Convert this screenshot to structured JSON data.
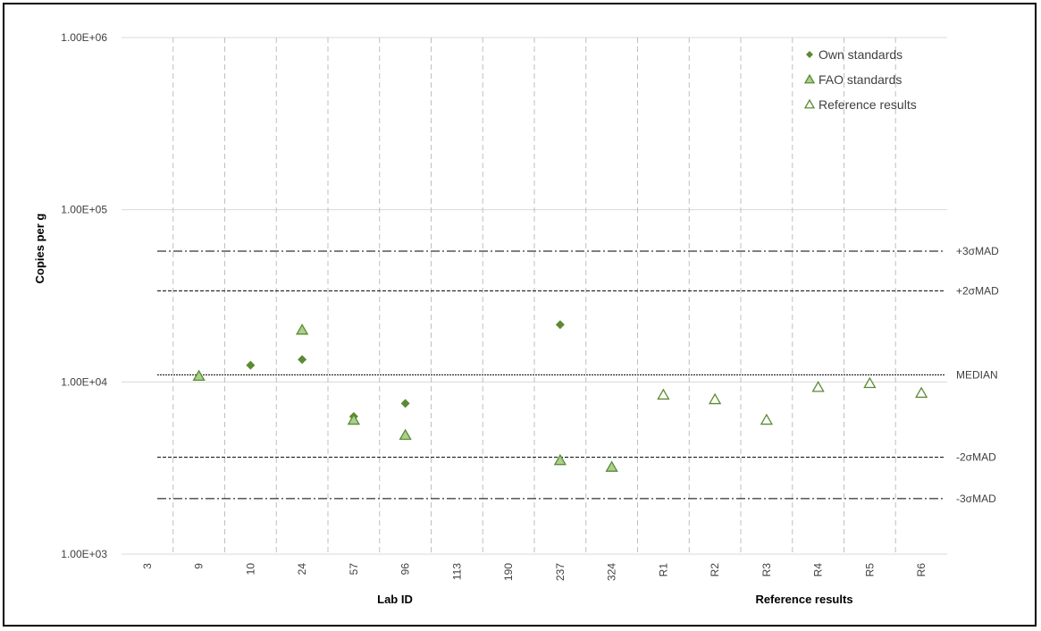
{
  "chart_data": {
    "type": "scatter",
    "ylabel": "Copies per g",
    "xlabel": "Lab ID",
    "xlabel_secondary": "Reference results",
    "y_scale": "log",
    "ylim": [
      1000,
      1000000
    ],
    "y_ticks": [
      {
        "value": 1000,
        "label": "1.00E+03"
      },
      {
        "value": 10000,
        "label": "1.00E+04"
      },
      {
        "value": 100000,
        "label": "1.00E+05"
      },
      {
        "value": 1000000,
        "label": "1.00E+06"
      }
    ],
    "categories": [
      "3",
      "9",
      "10",
      "24",
      "57",
      "96",
      "113",
      "190",
      "237",
      "324",
      "R1",
      "R2",
      "R3",
      "R4",
      "R5",
      "R6"
    ],
    "grid": {
      "vertical_dashed": true,
      "horizontal": true
    },
    "legend_position": "top-right",
    "series": [
      {
        "name": "Own standards",
        "marker": "diamond",
        "color": "#5b8a32",
        "points": [
          {
            "x": "10",
            "y": 12500
          },
          {
            "x": "24",
            "y": 13500
          },
          {
            "x": "57",
            "y": 6300
          },
          {
            "x": "96",
            "y": 7500
          },
          {
            "x": "237",
            "y": 21500
          }
        ]
      },
      {
        "name": "FAO standards",
        "marker": "triangle-filled",
        "color": "#a9d08e",
        "stroke": "#5b8a32",
        "points": [
          {
            "x": "9",
            "y": 10800
          },
          {
            "x": "24",
            "y": 20000
          },
          {
            "x": "57",
            "y": 6000
          },
          {
            "x": "96",
            "y": 4900
          },
          {
            "x": "237",
            "y": 3500
          },
          {
            "x": "324",
            "y": 3200
          }
        ]
      },
      {
        "name": "Reference results",
        "marker": "triangle-open",
        "color": "#ffffff",
        "stroke": "#5b8a32",
        "points": [
          {
            "x": "R1",
            "y": 8400
          },
          {
            "x": "R2",
            "y": 7900
          },
          {
            "x": "R3",
            "y": 6000
          },
          {
            "x": "R4",
            "y": 9300
          },
          {
            "x": "R5",
            "y": 9800
          },
          {
            "x": "R6",
            "y": 8600
          }
        ]
      }
    ],
    "reference_lines": [
      {
        "label": "+3σMAD",
        "value": 57500,
        "style": "dashdot"
      },
      {
        "label": "+2σMAD",
        "value": 33800,
        "style": "dashed"
      },
      {
        "label": "MEDIAN",
        "value": 11000,
        "style": "dotted"
      },
      {
        "label": "-2σMAD",
        "value": 3650,
        "style": "dashed"
      },
      {
        "label": "-3σMAD",
        "value": 2100,
        "style": "dashdot"
      }
    ]
  }
}
